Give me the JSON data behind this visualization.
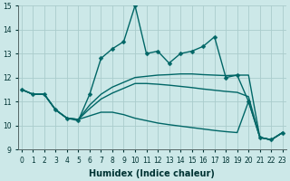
{
  "xlabel": "Humidex (Indice chaleur)",
  "xlim": [
    0,
    23
  ],
  "ylim": [
    9,
    15
  ],
  "yticks": [
    9,
    10,
    11,
    12,
    13,
    14,
    15
  ],
  "xticks": [
    0,
    1,
    2,
    3,
    4,
    5,
    6,
    7,
    8,
    9,
    10,
    11,
    12,
    13,
    14,
    15,
    16,
    17,
    18,
    19,
    20,
    21,
    22,
    23
  ],
  "bg_color": "#cce8e8",
  "grid_color": "#aacccc",
  "line_color": "#006666",
  "line1_x": [
    0,
    1,
    2,
    3,
    4,
    5,
    6,
    7,
    8,
    9,
    10,
    11,
    12,
    13,
    14,
    15,
    16,
    17,
    18,
    19,
    20,
    21,
    22,
    23
  ],
  "line1_y": [
    11.5,
    11.3,
    11.3,
    10.65,
    10.3,
    10.2,
    11.3,
    12.8,
    13.2,
    13.5,
    15.0,
    13.0,
    13.1,
    12.6,
    13.0,
    13.1,
    13.3,
    13.7,
    12.0,
    12.1,
    11.0,
    9.5,
    9.4,
    9.7
  ],
  "line2_x": [
    0,
    1,
    2,
    3,
    4,
    5,
    6,
    7,
    8,
    9,
    10,
    11,
    12,
    13,
    14,
    15,
    16,
    17,
    18,
    19,
    20,
    21,
    22,
    23
  ],
  "line2_y": [
    11.5,
    11.3,
    11.3,
    10.65,
    10.3,
    10.25,
    10.7,
    11.1,
    11.35,
    11.55,
    11.75,
    11.75,
    11.72,
    11.68,
    11.63,
    11.58,
    11.52,
    11.47,
    11.42,
    11.38,
    11.2,
    9.5,
    9.4,
    9.7
  ],
  "line3_x": [
    0,
    1,
    2,
    3,
    4,
    5,
    6,
    7,
    8,
    9,
    10,
    11,
    12,
    13,
    14,
    15,
    16,
    17,
    18,
    19,
    20,
    21,
    22,
    23
  ],
  "line3_y": [
    11.5,
    11.3,
    11.3,
    10.65,
    10.3,
    10.25,
    10.85,
    11.3,
    11.6,
    11.8,
    12.0,
    12.05,
    12.1,
    12.12,
    12.15,
    12.15,
    12.12,
    12.1,
    12.08,
    12.1,
    12.1,
    9.5,
    9.4,
    9.7
  ],
  "line4_x": [
    0,
    1,
    2,
    3,
    4,
    5,
    6,
    7,
    8,
    9,
    10,
    11,
    12,
    13,
    14,
    15,
    16,
    17,
    18,
    19,
    20,
    21,
    22,
    23
  ],
  "line4_y": [
    11.5,
    11.3,
    11.3,
    10.65,
    10.3,
    10.25,
    10.4,
    10.55,
    10.55,
    10.45,
    10.3,
    10.2,
    10.1,
    10.03,
    9.97,
    9.91,
    9.85,
    9.79,
    9.74,
    9.7,
    11.0,
    9.5,
    9.4,
    9.7
  ],
  "marker": "D",
  "markersize": 2.5,
  "linewidth": 1.0,
  "tick_fontsize": 5.5,
  "xlabel_fontsize": 7
}
